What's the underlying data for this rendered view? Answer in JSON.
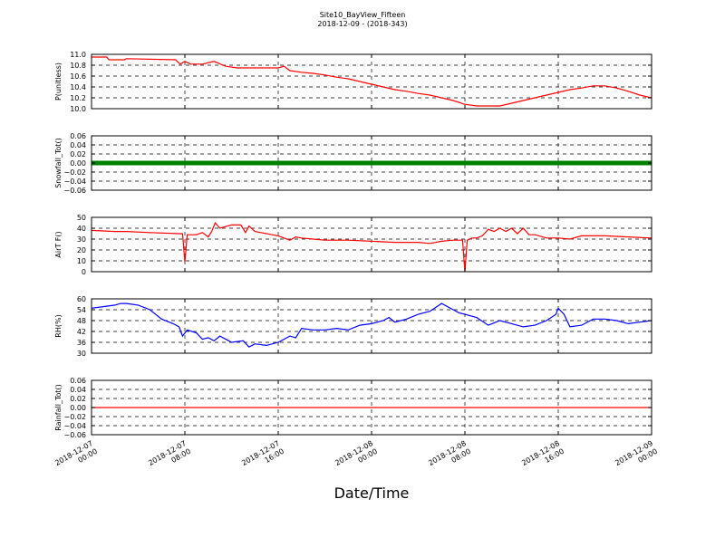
{
  "chart_data": {
    "type": "line",
    "title": "Site10_BayView_Fifteen",
    "subtitle": "2018-12-09 - (2018-343)",
    "xlabel": "Date/Time",
    "x_ticks": [
      {
        "line1": "2018-12-07",
        "line2": "00:00"
      },
      {
        "line1": "2018-12-07",
        "line2": "08:00"
      },
      {
        "line1": "2018-12-07",
        "line2": "16:00"
      },
      {
        "line1": "2018-12-08",
        "line2": "00:00"
      },
      {
        "line1": "2018-12-08",
        "line2": "08:00"
      },
      {
        "line1": "2018-12-08",
        "line2": "16:00"
      },
      {
        "line1": "2018-12-09",
        "line2": "00:00"
      }
    ],
    "x_range_hours": [
      0,
      48
    ],
    "grid": true,
    "panels": [
      {
        "ylabel": "P(unitless)",
        "ylim": [
          10.0,
          11.0
        ],
        "yticks": [
          "10.0",
          "10.2",
          "10.4",
          "10.6",
          "10.8",
          "11.0"
        ],
        "color": "#ff0000",
        "x_hours": [
          0,
          1.3,
          1.5,
          2.8,
          3.0,
          7.2,
          7.6,
          8.0,
          8.5,
          9.5,
          10.5,
          11.5,
          12.5,
          14,
          15,
          16,
          16.5,
          17,
          18,
          19,
          20,
          21,
          22,
          23,
          24,
          25,
          26,
          27,
          28,
          29,
          30,
          31,
          32,
          33,
          34,
          35,
          36,
          37,
          38,
          39,
          40,
          41,
          42,
          43,
          44,
          45,
          46,
          47,
          48
        ],
        "values": [
          10.95,
          10.95,
          10.9,
          10.9,
          10.92,
          10.9,
          10.82,
          10.87,
          10.82,
          10.82,
          10.87,
          10.78,
          10.75,
          10.75,
          10.75,
          10.75,
          10.78,
          10.7,
          10.67,
          10.65,
          10.62,
          10.58,
          10.55,
          10.5,
          10.45,
          10.4,
          10.35,
          10.32,
          10.28,
          10.25,
          10.2,
          10.15,
          10.08,
          10.05,
          10.05,
          10.05,
          10.1,
          10.15,
          10.2,
          10.25,
          10.3,
          10.35,
          10.38,
          10.42,
          10.42,
          10.38,
          10.32,
          10.25,
          10.2
        ]
      },
      {
        "ylabel": "Snowfall_Tot()",
        "ylim": [
          -0.06,
          0.06
        ],
        "yticks": [
          "−0.06",
          "−0.04",
          "−0.02",
          "0.00",
          "0.02",
          "0.04",
          "0.06"
        ],
        "color": "#008000",
        "style": "markers",
        "x_hours": [
          0,
          48
        ],
        "values": [
          0.0,
          0.0
        ]
      },
      {
        "ylabel": "AirT F()",
        "ylim": [
          0,
          50
        ],
        "yticks": [
          "0",
          "10",
          "20",
          "30",
          "40",
          "50"
        ],
        "color": "#ff0000",
        "x_hours": [
          0,
          2,
          3,
          5,
          7.5,
          7.8,
          8.0,
          8.2,
          9.0,
          9.5,
          10.0,
          10.3,
          10.6,
          11,
          12,
          12.8,
          13.2,
          13.5,
          14,
          16,
          16.5,
          17,
          17.5,
          18,
          19,
          20,
          22,
          24,
          26,
          28,
          29,
          30,
          31,
          31.8,
          32,
          32.2,
          32.6,
          33,
          33.5,
          34,
          34.5,
          35,
          35.5,
          36,
          36.5,
          37,
          37.5,
          38,
          39,
          40,
          41,
          42,
          44,
          46,
          48
        ],
        "values": [
          38,
          37,
          37,
          36,
          35,
          35,
          9,
          34,
          34,
          36,
          32,
          37,
          45,
          40,
          43,
          43,
          36,
          42,
          37,
          33,
          31,
          29,
          32,
          31,
          30,
          29,
          29,
          28,
          27,
          27,
          26,
          28,
          29,
          29,
          0,
          29,
          31,
          31,
          33,
          39,
          37,
          40,
          37,
          40,
          35,
          40,
          34,
          34,
          31,
          31,
          30,
          33,
          33,
          32,
          31
        ]
      },
      {
        "ylabel": "RH(%)",
        "ylim": [
          25,
          60
        ],
        "yticks": [
          "30",
          "36",
          "42",
          "48",
          "54",
          "60"
        ],
        "color": "#0000ff",
        "x_hours": [
          0,
          1,
          2,
          2.5,
          3,
          4,
          5,
          6,
          7,
          7.5,
          7.8,
          8.2,
          9,
          9.5,
          10,
          10.5,
          11,
          12,
          13,
          13.5,
          14,
          15,
          16,
          16.5,
          17,
          17.5,
          18,
          19,
          20,
          21,
          22,
          23,
          24,
          25,
          25.5,
          26,
          27,
          28,
          29,
          30,
          31,
          31.5,
          32,
          33,
          34,
          35,
          36,
          37,
          38,
          39,
          39.8,
          40,
          40.5,
          41,
          42,
          43,
          44,
          45,
          46,
          47,
          48
        ],
        "values": [
          54,
          55,
          56,
          57,
          57,
          56,
          53,
          47,
          44,
          42,
          36,
          40,
          38,
          34,
          35,
          33,
          36,
          32,
          33,
          29,
          31,
          30,
          32,
          34,
          36,
          35,
          41,
          40,
          40,
          41,
          40,
          43,
          44,
          46,
          48,
          45,
          47,
          50,
          52,
          57,
          53,
          51,
          50,
          48,
          43,
          46,
          44,
          42,
          43,
          46,
          50,
          54,
          50,
          42,
          43,
          47,
          47,
          46,
          44,
          45,
          46
        ]
      },
      {
        "ylabel": "Rainfall_Tot()",
        "ylim": [
          -0.06,
          0.06
        ],
        "yticks": [
          "−0.06",
          "−0.04",
          "−0.02",
          "0.00",
          "0.02",
          "0.04",
          "0.06"
        ],
        "color": "#ff0000",
        "x_hours": [
          0,
          48
        ],
        "values": [
          0.0,
          0.0
        ]
      }
    ]
  }
}
